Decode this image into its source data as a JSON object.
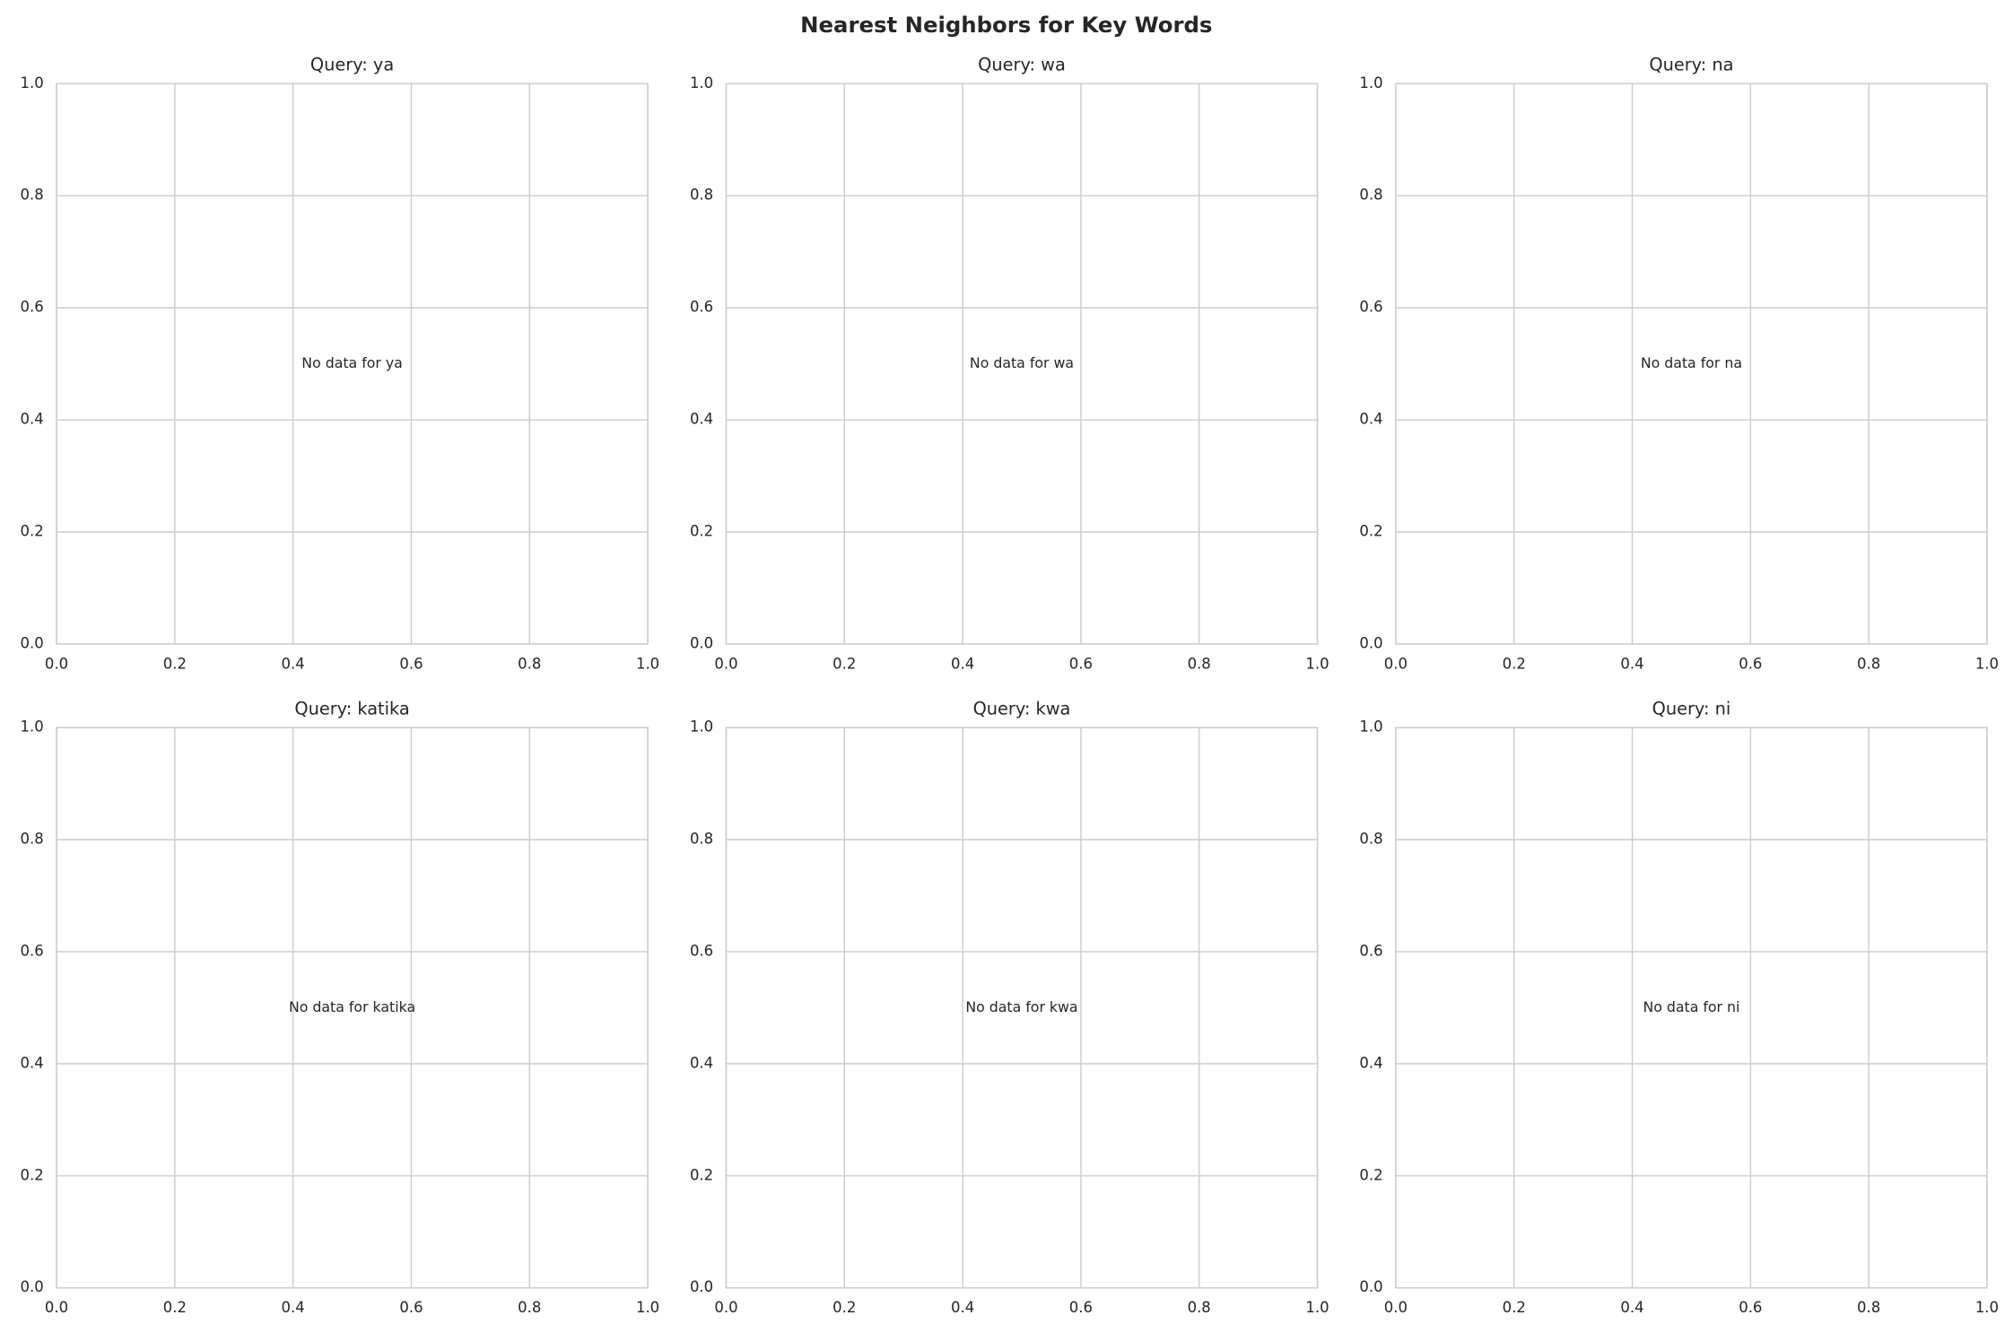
{
  "title": "Nearest Neighbors for Key Words",
  "chart_data": [
    {
      "type": "scatter",
      "title": "Query: ya",
      "annotation": "No data for ya",
      "xlim": [
        0,
        1
      ],
      "ylim": [
        0,
        1
      ],
      "xticks": [
        {
          "value": 0,
          "label": "0.0"
        },
        0.2,
        0.4,
        0.6,
        0.8,
        {
          "value": 1,
          "label": "1.0"
        }
      ],
      "yticks": [
        {
          "value": 0,
          "label": "0.0"
        },
        0.2,
        0.4,
        0.6,
        0.8,
        {
          "value": 1,
          "label": "1.0"
        }
      ],
      "grid": true
    },
    {
      "type": "scatter",
      "title": "Query: wa",
      "annotation": "No data for wa",
      "xlim": [
        0,
        1
      ],
      "ylim": [
        0,
        1
      ],
      "xticks": [
        {
          "value": 0,
          "label": "0.0"
        },
        0.2,
        0.4,
        0.6,
        0.8,
        {
          "value": 1,
          "label": "1.0"
        }
      ],
      "yticks": [
        {
          "value": 0,
          "label": "0.0"
        },
        0.2,
        0.4,
        0.6,
        0.8,
        {
          "value": 1,
          "label": "1.0"
        }
      ],
      "grid": true
    },
    {
      "type": "scatter",
      "title": "Query: na",
      "annotation": "No data for na",
      "xlim": [
        0,
        1
      ],
      "ylim": [
        0,
        1
      ],
      "xticks": [
        {
          "value": 0,
          "label": "0.0"
        },
        0.2,
        0.4,
        0.6,
        0.8,
        {
          "value": 1,
          "label": "1.0"
        }
      ],
      "yticks": [
        {
          "value": 0,
          "label": "0.0"
        },
        0.2,
        0.4,
        0.6,
        0.8,
        {
          "value": 1,
          "label": "1.0"
        }
      ],
      "grid": true
    },
    {
      "type": "scatter",
      "title": "Query: katika",
      "annotation": "No data for katika",
      "xlim": [
        0,
        1
      ],
      "ylim": [
        0,
        1
      ],
      "xticks": [
        {
          "value": 0,
          "label": "0.0"
        },
        0.2,
        0.4,
        0.6,
        0.8,
        {
          "value": 1,
          "label": "1.0"
        }
      ],
      "yticks": [
        {
          "value": 0,
          "label": "0.0"
        },
        0.2,
        0.4,
        0.6,
        0.8,
        {
          "value": 1,
          "label": "1.0"
        }
      ],
      "grid": true
    },
    {
      "type": "scatter",
      "title": "Query: kwa",
      "annotation": "No data for kwa",
      "xlim": [
        0,
        1
      ],
      "ylim": [
        0,
        1
      ],
      "xticks": [
        {
          "value": 0,
          "label": "0.0"
        },
        0.2,
        0.4,
        0.6,
        0.8,
        {
          "value": 1,
          "label": "1.0"
        }
      ],
      "yticks": [
        {
          "value": 0,
          "label": "0.0"
        },
        0.2,
        0.4,
        0.6,
        0.8,
        {
          "value": 1,
          "label": "1.0"
        }
      ],
      "grid": true
    },
    {
      "type": "scatter",
      "title": "Query: ni",
      "annotation": "No data for ni",
      "xlim": [
        0,
        1
      ],
      "ylim": [
        0,
        1
      ],
      "xticks": [
        {
          "value": 0,
          "label": "0.0"
        },
        0.2,
        0.4,
        0.6,
        0.8,
        {
          "value": 1,
          "label": "1.0"
        }
      ],
      "yticks": [
        {
          "value": 0,
          "label": "0.0"
        },
        0.2,
        0.4,
        0.6,
        0.8,
        {
          "value": 1,
          "label": "1.0"
        }
      ],
      "grid": true
    }
  ]
}
